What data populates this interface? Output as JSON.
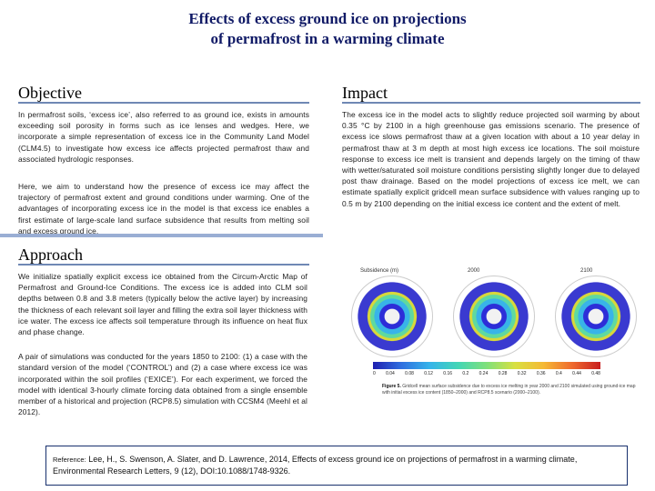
{
  "title": {
    "line1": "Effects of excess ground ice on projections",
    "line2": "of permafrost in a warming climate"
  },
  "objective": {
    "heading": "Objective",
    "para1": "In permafrost soils, ‘excess ice’, also referred to as ground ice, exists in amounts exceeding soil porosity in forms such as ice lenses and wedges. Here, we incorporate a simple representation of excess ice in the Community Land Model (CLM4.5) to investigate how excess ice affects projected permafrost thaw and associated hydrologic responses.",
    "para2": "Here, we aim to understand how the presence of excess ice may affect the trajectory of permafrost extent and ground conditions under warming. One of the advantages of incorporating excess ice in the model is that excess ice enables a first estimate of large-scale land surface subsidence that results from melting soil and excess ground ice."
  },
  "impact": {
    "heading": "Impact",
    "text": "The excess ice in the model acts to slightly reduce projected soil warming by about 0.35 °C by 2100 in a high greenhouse gas emissions scenario. The presence of excess ice slows permafrost thaw at a given location with about a 10 year delay in permafrost thaw at 3 m depth at most high excess ice locations. The soil moisture response to excess ice melt is transient and depends largely on the timing of thaw with wetter/saturated soil moisture conditions persisting slightly longer due to delayed post thaw drainage. Based on the model projections of excess ice melt, we can estimate spatially explicit gridcell mean surface subsidence with values ranging up to 0.5 m by 2100 depending on the initial excess ice content and the extent of melt."
  },
  "approach": {
    "heading": "Approach",
    "para1": "We initialize spatially explicit excess ice obtained from the Circum-Arctic Map of Permafrost and Ground-Ice Conditions. The excess ice is added into CLM soil depths between 0.8 and 3.8 meters (typically below the active layer) by increasing the thickness of each relevant soil layer and filling the extra soil layer thickness with ice water. The excess ice affects soil temperature through its influence on heat flux and phase change.",
    "para2": "A pair of simulations was conducted for the years 1850 to 2100: (1) a case with the standard version of the model (‘CONTROL’) and (2) a case where excess ice was incorporated within the soil profiles (‘EXICE’). For each experiment, we forced the model with identical 3-hourly climate forcing data obtained from a single ensemble member of a historical and projection (RCP8.5) simulation with CCSM4 (Meehl et al 2012)."
  },
  "figure": {
    "label_left": "Subsidence (m)",
    "label_year1": "2000",
    "label_year2": "2100",
    "ticks": [
      "0",
      "0.04",
      "0.08",
      "0.12",
      "0.16",
      "0.2",
      "0.24",
      "0.28",
      "0.32",
      "0.36",
      "0.4",
      "0.44",
      "0.48"
    ],
    "caption_lead": "Figure 5.",
    "caption": "Gridcell mean surface subsidence due to excess ice melting in year 2000 and 2100 simulated using ground-ice map with initial excess ice content (1850–2000) and RCP8.5 scenario (2000–2100)."
  },
  "reference": {
    "lead": "Reference:",
    "text": "Lee, H., S. Swenson, A. Slater, and D. Lawrence, 2014, Effects of excess ground ice on projections of permafrost in a warming climate, Environmental Research Letters, 9 (12), DOI:10.1088/1748-9326."
  }
}
